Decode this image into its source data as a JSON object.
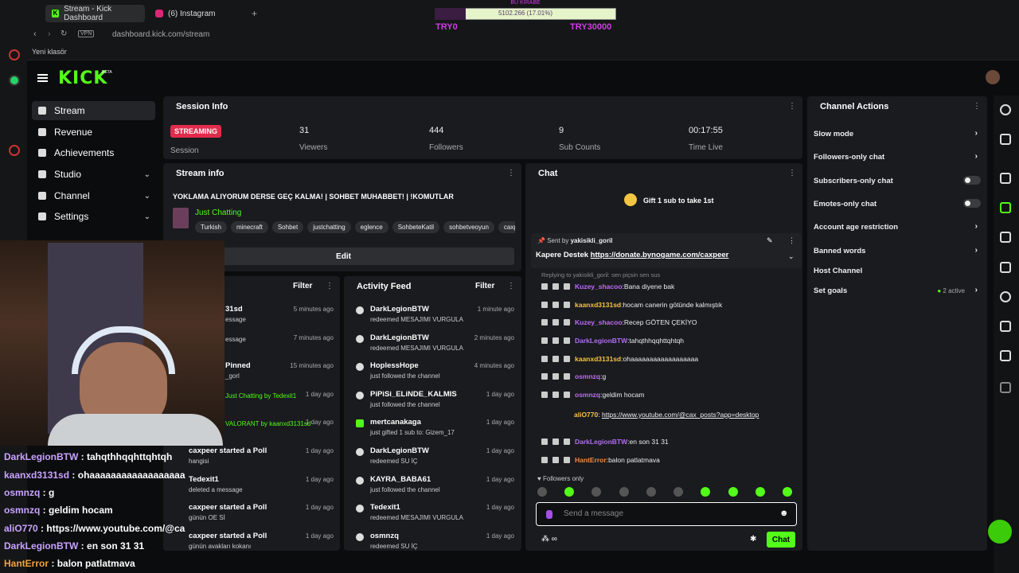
{
  "browser": {
    "tabs": [
      "Stream - Kick Dashboard",
      "(6) Instagram"
    ],
    "url": "dashboard.kick.com/stream",
    "vpn": "VPN",
    "bookmark": "Yeni klasör"
  },
  "goal_overlay": {
    "top_text": "BU KIRABE",
    "value_text": "5102.266 (17.01%)",
    "progress": 0.1701,
    "min": "TRY0",
    "max": "TRY30000"
  },
  "app": {
    "logo": "KICK",
    "beta": "BETA"
  },
  "sidebar": {
    "items": [
      {
        "label": "Stream"
      },
      {
        "label": "Revenue"
      },
      {
        "label": "Achievements"
      },
      {
        "label": "Studio"
      },
      {
        "label": "Channel"
      },
      {
        "label": "Settings"
      }
    ]
  },
  "session": {
    "title": "Session Info",
    "status": "STREAMING",
    "session_label": "Session",
    "stats": [
      {
        "value": "31",
        "label": "Viewers"
      },
      {
        "value": "444",
        "label": "Followers"
      },
      {
        "value": "9",
        "label": "Sub Counts"
      },
      {
        "value": "00:17:55",
        "label": "Time Live"
      }
    ]
  },
  "stream_info": {
    "title": "Stream info",
    "stream_title": "YOKLAMA ALIYORUM DERSE GEÇ KALMA! | SOHBET MUHABBET! | !KOMUTLAR",
    "category": "Just Chatting",
    "tags": [
      "Turkish",
      "minecraft",
      "Sohbet",
      "justchatting",
      "eglence",
      "SohbeteKatil",
      "sohbetveoyun",
      "caxp"
    ],
    "edit": "Edit"
  },
  "left_feed": {
    "filter": "Filter",
    "items": [
      {
        "name": "31sd",
        "sub": "essage",
        "time": "5 minutes ago"
      },
      {
        "name": "",
        "sub": "essage",
        "time": "7 minutes ago"
      },
      {
        "name": "Pinned",
        "sub": "_gorl",
        "time": "15 minutes ago"
      },
      {
        "name": "",
        "sub": "Just Chatting by Tedexit1",
        "time": "1 day ago"
      },
      {
        "name": "",
        "sub": "VALORANT by kaanxd3131sd",
        "time": "1 day ago"
      },
      {
        "name": "caxpeer started a Poll",
        "sub": "hangisi",
        "time": "1 day ago"
      },
      {
        "name": "Tedexit1",
        "sub": "deleted a message",
        "time": "1 day ago"
      },
      {
        "name": "caxpeer started a Poll",
        "sub": "günün OE Sİ",
        "time": "1 day ago"
      },
      {
        "name": "caxpeer started a Poll",
        "sub": "günün avakları kokanı",
        "time": "1 day ago"
      }
    ]
  },
  "activity": {
    "title": "Activity Feed",
    "filter": "Filter",
    "items": [
      {
        "name": "DarkLegionBTW",
        "sub": "redeemed MESAJIMI VURGULA",
        "time": "1 minute ago"
      },
      {
        "name": "DarkLegionBTW",
        "sub": "redeemed MESAJIMI VURGULA",
        "time": "2 minutes ago"
      },
      {
        "name": "HoplessHope",
        "sub": "just followed the channel",
        "time": "4 minutes ago"
      },
      {
        "name": "PiPiSi_ELiNDE_KALMIS",
        "sub": "just followed the channel",
        "time": "1 day ago"
      },
      {
        "name": "mertcanakaga",
        "sub": "just gifted 1 sub to: Gizem_17",
        "time": "1 day ago"
      },
      {
        "name": "DarkLegionBTW",
        "sub": "redeemed SU İÇ",
        "time": "1 day ago"
      },
      {
        "name": "KAYRA_BABA61",
        "sub": "just followed the channel",
        "time": "1 day ago"
      },
      {
        "name": "Tedexit1",
        "sub": "redeemed MESAJIMI VURGULA",
        "time": "1 day ago"
      },
      {
        "name": "osmnzq",
        "sub": "redeemed SU İÇ",
        "time": "1 day ago"
      }
    ]
  },
  "chat": {
    "title": "Chat",
    "gift": "Gift 1 sub to take 1st",
    "pinned_by": "Sent by",
    "pinned_user": "yakisikli_goril",
    "pinned_text": "Kapere Destek",
    "pinned_link": "https://donate.bynogame.com/caxpeer",
    "replying": "Replying to yakisikli_goril: sen piçsin sen sus",
    "messages": [
      {
        "user": "Kuzey_shacoo",
        "text": "Bana diyene bak",
        "color": "#c06cf3"
      },
      {
        "user": "kaanxd3131sd",
        "text": "hocam canerin götünde kalmıştık",
        "color": "#f4c542"
      },
      {
        "user": "Kuzey_shacoo",
        "text": "Recep GÖTEN ÇEKİYO",
        "color": "#c06cf3"
      },
      {
        "user": "DarkLegionBTW",
        "text": "tahqthhqqhttqhtqh",
        "color": "#b46cf3"
      },
      {
        "user": "kaanxd3131sd",
        "text": "ohaaaaaaaaaaaaaaaaaa",
        "color": "#f4c542"
      },
      {
        "user": "osmnzq",
        "text": "g",
        "color": "#c06cf3"
      },
      {
        "user": "osmnzq",
        "text": "geldim hocam",
        "color": "#c06cf3"
      },
      {
        "user": "aliO770",
        "text": "https://www.youtube.com/@cax_posts?app=desktop",
        "color": "#f4c542"
      },
      {
        "user": "DarkLegionBTW",
        "text": "en son 31 31",
        "color": "#b46cf3"
      },
      {
        "user": "HantError",
        "text": "balon patlatmava",
        "color": "#f48a42"
      }
    ],
    "followers_only": "Followers only",
    "placeholder": "Send a message",
    "send": "Chat"
  },
  "channel_actions": {
    "title": "Channel Actions",
    "items": [
      {
        "label": "Slow mode",
        "control": "arrow"
      },
      {
        "label": "Followers-only chat",
        "control": "arrow"
      },
      {
        "label": "Subscribers-only chat",
        "control": "toggle"
      },
      {
        "label": "Emotes-only chat",
        "control": "toggle"
      },
      {
        "label": "Account age restriction",
        "control": "arrow"
      },
      {
        "label": "Banned words",
        "control": "arrow"
      },
      {
        "label": "Host Channel",
        "control": "none"
      },
      {
        "label": "Set goals",
        "control": "arrow"
      }
    ],
    "goals_status": "2 active"
  },
  "overlay_chat": [
    {
      "user": "DarkLegionBTW",
      "text": "tahqthhqqhttqhtqh",
      "color": "#c9a3ff"
    },
    {
      "user": "kaanxd3131sd",
      "text": "ohaaaaaaaaaaaaaaaaaa",
      "color": "#c9a3ff"
    },
    {
      "user": "osmnzq",
      "text": "g",
      "color": "#c9a3ff"
    },
    {
      "user": "osmnzq",
      "text": "geldim hocam",
      "color": "#c9a3ff"
    },
    {
      "user": "aliO770",
      "text": "https://www.youtube.com/@ca",
      "color": "#c9a3ff"
    },
    {
      "user": "DarkLegionBTW",
      "text": "en son 31 31",
      "color": "#c9a3ff"
    },
    {
      "user": "HantError",
      "text": "balon patlatmava",
      "color": "#f4a142"
    }
  ]
}
